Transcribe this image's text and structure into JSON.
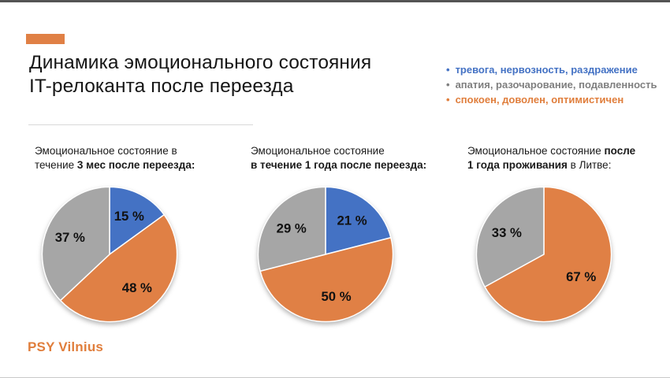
{
  "page": {
    "title_line1": "Динамика эмоционального состояния",
    "title_line2": "IT-релоканта после переезда",
    "footer_brand": "PSY Vilnius",
    "accent_color": "#E08045",
    "brand_color": "#E07E3C"
  },
  "legend": {
    "items": [
      {
        "label": "тревога, нервозность, раздражение",
        "color": "#4472C4"
      },
      {
        "label": "апатия, разочарование, подавленность",
        "color": "#7F7F7F"
      },
      {
        "label": "спокоен, доволен, оптимистичен",
        "color": "#E07E3C"
      }
    ]
  },
  "chart_data": [
    {
      "type": "pie",
      "title": "Эмоциональное состояние в течение 3 мес после переезда",
      "start_angle_deg": 0,
      "direction": "clockwise",
      "caption_lines": [
        [
          {
            "t": "Эмоциональное состояние в",
            "b": false
          }
        ],
        [
          {
            "t": "течение ",
            "b": false
          },
          {
            "t": "3 мес после переезда:",
            "b": true
          }
        ]
      ],
      "slices": [
        {
          "name": "тревога, нервозность, раздражение",
          "value": 15,
          "label": "15 %",
          "color": "#4472C4"
        },
        {
          "name": "спокоен, доволен, оптимистичен",
          "value": 48,
          "label": "48 %",
          "color": "#E08045"
        },
        {
          "name": "апатия, разочарование, подавленность",
          "value": 37,
          "label": "37 %",
          "color": "#A6A6A6"
        }
      ]
    },
    {
      "type": "pie",
      "title": "Эмоциональное состояние в течение 1 года после переезда",
      "start_angle_deg": 0,
      "direction": "clockwise",
      "caption_lines": [
        [
          {
            "t": "Эмоциональное состояние",
            "b": false
          }
        ],
        [
          {
            "t": "в течение 1 года после переезда:",
            "b": true
          }
        ]
      ],
      "slices": [
        {
          "name": "тревога, нервозность, раздражение",
          "value": 21,
          "label": "21 %",
          "color": "#4472C4"
        },
        {
          "name": "спокоен, доволен, оптимистичен",
          "value": 50,
          "label": "50 %",
          "color": "#E08045"
        },
        {
          "name": "апатия, разочарование, подавленность",
          "value": 29,
          "label": "29 %",
          "color": "#A6A6A6"
        }
      ]
    },
    {
      "type": "pie",
      "title": "Эмоциональное состояние после 1 года проживания в Литве",
      "start_angle_deg": 0,
      "direction": "clockwise",
      "caption_lines": [
        [
          {
            "t": "Эмоциональное состояние ",
            "b": false
          },
          {
            "t": "после",
            "b": true
          }
        ],
        [
          {
            "t": "1 года проживания",
            "b": true
          },
          {
            "t": " в Литве:",
            "b": false
          }
        ]
      ],
      "slices": [
        {
          "name": "спокоен, доволен, оптимистичен",
          "value": 67,
          "label": "67 %",
          "color": "#E08045"
        },
        {
          "name": "апатия, разочарование, подавленность",
          "value": 33,
          "label": "33 %",
          "color": "#A6A6A6"
        }
      ]
    }
  ]
}
